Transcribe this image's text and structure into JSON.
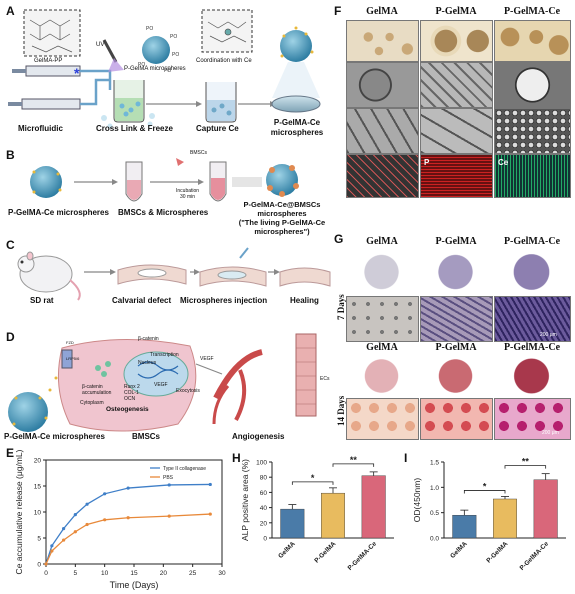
{
  "panel_labels": {
    "A": "A",
    "B": "B",
    "C": "C",
    "D": "D",
    "E": "E",
    "F": "F",
    "G": "G",
    "H": "H",
    "I": "I"
  },
  "panelA": {
    "gelma_pp": "GelMA-PP",
    "uv": "UV",
    "microspheres": "P-GelMA microspheres",
    "coordination": "Coordination with Ce",
    "microfluidic": "Microfluidic",
    "crosslink": "Cross Link & Freeze",
    "capture": "Capture Ce",
    "product_line1": "P-GelMA-Ce",
    "product_line2": "microspheres"
  },
  "panelB": {
    "step1": "P-GelMA-Ce microspheres",
    "step2": "BMSCs & Microspheres",
    "bmscs": "BMSCs",
    "incubation_line1": "Incubation",
    "incubation_line2": "30 min",
    "step3_line1": "P-GelMA-Ce@BMSCs",
    "step3_line2": "microspheres",
    "step3_line3": "(\"The living P-GelMA-Ce",
    "step3_line4": "microspheres\")"
  },
  "panelC": {
    "step1": "SD rat",
    "step2": "Calvarial defect",
    "step3": "Microspheres injection",
    "step4": "Healing"
  },
  "panelD": {
    "microspheres": "P-GelMA-Ce microspheres",
    "bmscs": "BMSCs",
    "angiogenesis": "Angiogenesis",
    "osteogenesis": "Osteogenesis",
    "cytoplasm": "Cytoplasm",
    "nucleus": "Nucleus",
    "transcription": "Transcription",
    "bcatenin_top": "β-catenin",
    "bcatenin_acc_line1": "β-catenin",
    "bcatenin_acc_line2": "accumulation",
    "markers_line1": "Runx 2",
    "markers_line2": "COL-1",
    "markers_line3": "OCN",
    "vegf1": "VEGF",
    "vegf2": "VEGF",
    "exocytosis": "Exocytosis",
    "ecs": "ECs",
    "receptor_labels": [
      "FZD",
      "LRP5/6"
    ]
  },
  "panelF": {
    "columns": [
      "GelMA",
      "P-GelMA",
      "P-GelMA-Ce"
    ],
    "eds_labels": [
      "P",
      "Ce"
    ]
  },
  "panelG": {
    "columns": [
      "GelMA",
      "P-GelMA",
      "P-GelMA-Ce"
    ],
    "row_top": "7 Days",
    "row_bottom": "14 Days",
    "scale_bar": "200 μm"
  },
  "chart_data": [
    {
      "type": "line",
      "panel": "E",
      "xlabel": "Time (Days)",
      "ylabel": "Ce accumulative release (μg/mL)",
      "xlim": [
        0,
        30
      ],
      "ylim": [
        0,
        20
      ],
      "xticks": [
        0,
        5,
        10,
        15,
        20,
        25,
        30
      ],
      "yticks": [
        0,
        5,
        10,
        15,
        20
      ],
      "legend_position": "top-right",
      "series": [
        {
          "name": "Type II collagenase",
          "color": "#3f7fc8",
          "x": [
            0,
            1,
            3,
            5,
            7,
            10,
            14,
            21,
            28
          ],
          "y": [
            0,
            3.5,
            6.8,
            9.5,
            11.5,
            13.5,
            14.6,
            15.2,
            15.3
          ]
        },
        {
          "name": "PBS",
          "color": "#e8893a",
          "x": [
            0,
            1,
            3,
            5,
            7,
            10,
            14,
            21,
            28
          ],
          "y": [
            0,
            2.5,
            4.6,
            6.2,
            7.6,
            8.5,
            8.9,
            9.2,
            9.6
          ]
        }
      ]
    },
    {
      "type": "bar",
      "panel": "H",
      "ylabel": "ALP positive area (%)",
      "categories": [
        "GelMA",
        "P-GelMA",
        "P-GelMA-Ce"
      ],
      "values": [
        38,
        59,
        82
      ],
      "errors": [
        6,
        7,
        5
      ],
      "colors": [
        "#4a7ba8",
        "#e8bb5f",
        "#d9677a"
      ],
      "ylim": [
        0,
        100
      ],
      "yticks": [
        0,
        20,
        40,
        60,
        80,
        100
      ],
      "significance": [
        {
          "from": 0,
          "to": 1,
          "label": "*"
        },
        {
          "from": 1,
          "to": 2,
          "label": "**"
        }
      ]
    },
    {
      "type": "bar",
      "panel": "I",
      "ylabel": "OD(450nm)",
      "categories": [
        "GelMA",
        "P-GelMA",
        "P-GelMA-Ce"
      ],
      "values": [
        0.45,
        0.77,
        1.15
      ],
      "errors": [
        0.1,
        0.05,
        0.12
      ],
      "colors": [
        "#4a7ba8",
        "#e8bb5f",
        "#d9677a"
      ],
      "ylim": [
        0,
        1.5
      ],
      "yticks": [
        0.0,
        0.5,
        1.0,
        1.5
      ],
      "significance": [
        {
          "from": 0,
          "to": 1,
          "label": "*"
        },
        {
          "from": 1,
          "to": 2,
          "label": "**"
        }
      ]
    }
  ]
}
